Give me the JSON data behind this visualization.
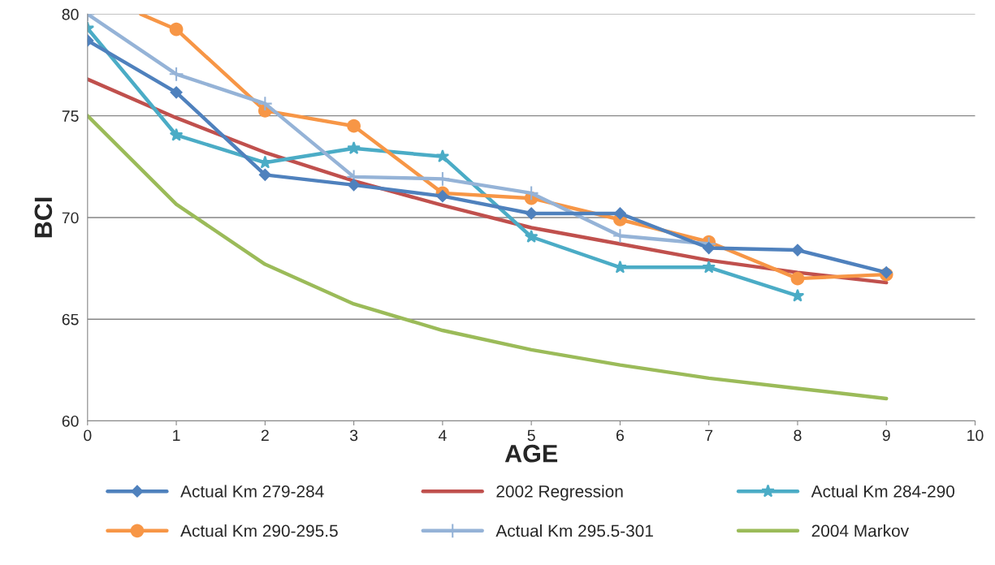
{
  "chart_data": {
    "type": "line",
    "xlabel": "AGE",
    "ylabel": "BCI",
    "xlim": [
      0,
      10
    ],
    "xticks": [
      0,
      1,
      2,
      3,
      4,
      5,
      6,
      7,
      8,
      9,
      10
    ],
    "ylim": [
      60,
      80
    ],
    "yticks": [
      60,
      65,
      70,
      75,
      80
    ],
    "grid": "y",
    "legend": "bottom",
    "series": [
      {
        "name": "Actual Km 279-284",
        "color": "#4f81bd",
        "marker": "diamond",
        "x": [
          0,
          1,
          2,
          3,
          4,
          5,
          6,
          7,
          8,
          9
        ],
        "values": [
          78.7,
          76.15,
          72.1,
          71.6,
          71.05,
          70.2,
          70.2,
          68.5,
          68.4,
          67.3
        ]
      },
      {
        "name": "2002 Regression",
        "color": "#c0504d",
        "marker": "none",
        "x": [
          0,
          1,
          2,
          3,
          4,
          5,
          6,
          7,
          8,
          9
        ],
        "values": [
          76.8,
          74.9,
          73.2,
          71.8,
          70.6,
          69.5,
          68.7,
          67.9,
          67.3,
          66.8
        ]
      },
      {
        "name": "Actual Km 284-290",
        "color": "#4bacc6",
        "marker": "star",
        "x": [
          0,
          1,
          2,
          3,
          4,
          5,
          6,
          7,
          8
        ],
        "values": [
          79.3,
          74.05,
          72.7,
          73.4,
          73.0,
          69.05,
          67.55,
          67.55,
          66.15
        ]
      },
      {
        "name": "Actual Km 290-295.5",
        "color": "#f79646",
        "marker": "circle",
        "x": [
          0.6,
          1,
          2,
          3,
          4,
          5,
          6,
          7,
          8,
          9
        ],
        "values": [
          80.0,
          79.25,
          75.25,
          74.5,
          71.2,
          70.95,
          69.9,
          68.8,
          67.0,
          67.2
        ]
      },
      {
        "name": "Actual Km 295.5-301",
        "color": "#95b3d7",
        "marker": "cross",
        "x": [
          0,
          1,
          2,
          3,
          4,
          5,
          6,
          7
        ],
        "values": [
          80.0,
          77.05,
          75.6,
          72.0,
          71.9,
          71.2,
          69.1,
          68.7
        ]
      },
      {
        "name": "2004 Markov",
        "color": "#9bbb59",
        "marker": "none",
        "x": [
          0,
          1,
          2,
          3,
          4,
          5,
          6,
          7,
          8,
          9
        ],
        "values": [
          75.0,
          70.65,
          67.7,
          65.75,
          64.45,
          63.5,
          62.75,
          62.1,
          61.6,
          61.1
        ]
      }
    ]
  }
}
